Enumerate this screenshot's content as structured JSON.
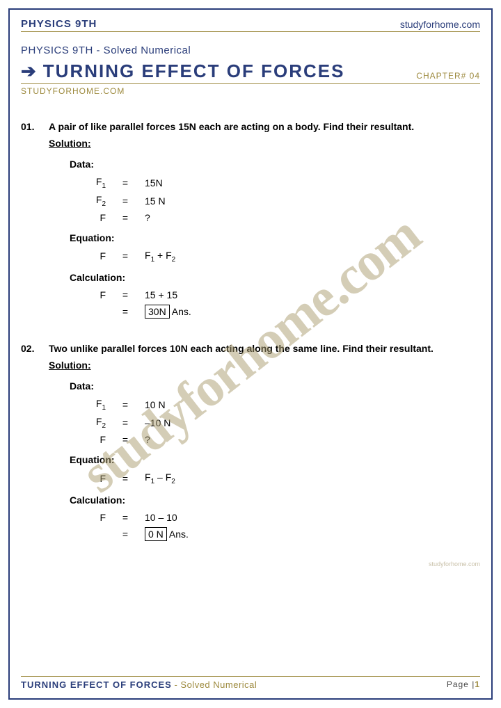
{
  "header": {
    "left": "PHYSICS 9TH",
    "right": "studyforhome.com"
  },
  "subtitle": "PHYSICS 9TH - Solved Numerical",
  "title": "TURNING EFFECT OF FORCES",
  "chapter": "CHAPTER# 04",
  "site": "STUDYFORHOME.COM",
  "watermark": "studyforhome.com",
  "side_watermark": "studyforhome.com",
  "problems": [
    {
      "num": "01.",
      "text": "A pair of like parallel forces 15N each are acting on a body. Find their resultant.",
      "solution_label": "Solution:",
      "data_label": "Data:",
      "data_rows": [
        {
          "lhs": "F<sub>1</sub>",
          "eq": "=",
          "rhs": "15N"
        },
        {
          "lhs": "F<sub>2</sub>",
          "eq": "=",
          "rhs": "15 N"
        },
        {
          "lhs": "F",
          "eq": "=",
          "rhs": "?"
        }
      ],
      "equation_label": "Equation:",
      "equation_rows": [
        {
          "lhs": "F",
          "eq": "=",
          "rhs": "F<sub>1</sub> + F<sub>2</sub>"
        }
      ],
      "calculation_label": "Calculation:",
      "calc_rows": [
        {
          "lhs": "F",
          "eq": "=",
          "rhs": "15 + 15"
        },
        {
          "lhs": "",
          "eq": "=",
          "boxed": "30N",
          "suffix": " Ans."
        }
      ]
    },
    {
      "num": "02.",
      "text": "Two unlike parallel forces 10N each acting along the same line. Find their resultant.",
      "solution_label": "Solution:",
      "data_label": "Data:",
      "data_rows": [
        {
          "lhs": "F<sub>1</sub>",
          "eq": "=",
          "rhs": "10 N"
        },
        {
          "lhs": "F<sub>2</sub>",
          "eq": "=",
          "rhs": "–10 N"
        },
        {
          "lhs": "F",
          "eq": "=",
          "rhs": "?"
        }
      ],
      "equation_label": "Equation:",
      "equation_rows": [
        {
          "lhs": "F",
          "eq": "=",
          "rhs": "F<sub>1</sub> – F<sub>2</sub>"
        }
      ],
      "calculation_label": "Calculation:",
      "calc_rows": [
        {
          "lhs": "F",
          "eq": "=",
          "rhs": "10 – 10"
        },
        {
          "lhs": "",
          "eq": "=",
          "boxed": "0 N",
          "suffix": " Ans."
        }
      ]
    }
  ],
  "footer": {
    "title": "TURNING EFFECT OF FORCES",
    "sub": " - Solved Numerical",
    "page_label": "Page |",
    "page_num": "1"
  },
  "colors": {
    "navy": "#2a3d7a",
    "gold": "#9d8a3e",
    "watermark": "rgba(170,155,110,0.5)"
  }
}
